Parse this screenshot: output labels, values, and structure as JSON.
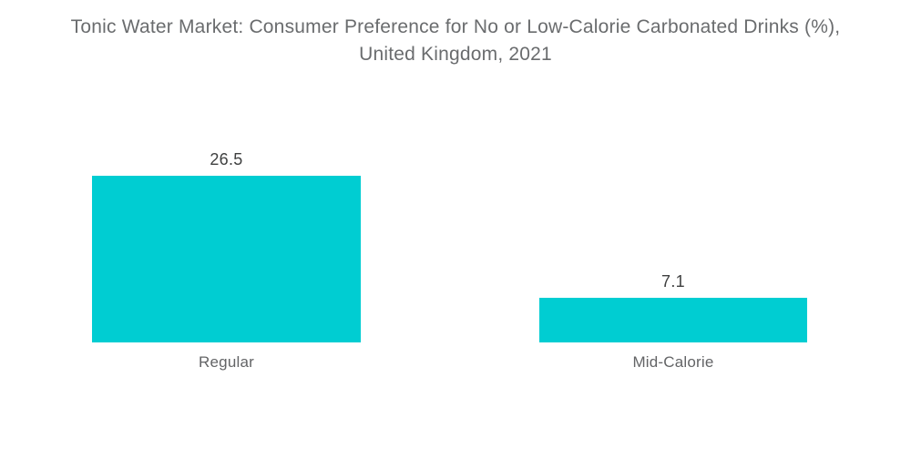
{
  "title": {
    "line1": "Tonic Water Market: Consumer Preference for No or Low-Calorie Carbonated Drinks (%),",
    "line2": "United Kingdom, 2021"
  },
  "chart_data": {
    "type": "bar",
    "orientation": "vertical",
    "title": "Tonic Water Market: Consumer Preference for No or Low-Calorie Carbonated Drinks (%), United Kingdom, 2021",
    "categories": [
      "Regular",
      "Mid-Calorie"
    ],
    "values": [
      26.5,
      7.1
    ],
    "value_labels": [
      "26.5",
      "7.1"
    ],
    "xlabel": "",
    "ylabel": "",
    "ylim": [
      0,
      26.5
    ],
    "grid": false,
    "legend": false,
    "axes_visible": false
  },
  "colors": {
    "bar": "#00cdd2",
    "title_text": "#6a6c6e",
    "value_text": "#3f4040",
    "category_text": "#636466",
    "background": "#ffffff"
  }
}
